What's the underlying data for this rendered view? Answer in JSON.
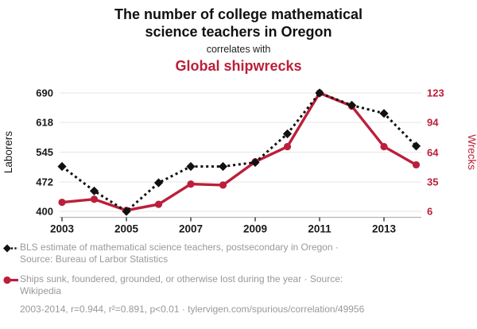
{
  "header": {
    "title_lines": [
      "The number of college mathematical",
      "science teachers in Oregon"
    ],
    "connector": "correlates with",
    "correlate_title": "Global shipwrecks"
  },
  "chart_data": {
    "type": "line",
    "x": [
      2003,
      2004,
      2005,
      2006,
      2007,
      2008,
      2009,
      2010,
      2011,
      2012,
      2013,
      2014
    ],
    "x_ticks": [
      2003,
      2005,
      2007,
      2009,
      2011,
      2013
    ],
    "series": [
      {
        "name": "BLS estimate of mathematical science teachers, postsecondary in Oregon",
        "axis": "left",
        "color": "#111111",
        "line_style": "dashed",
        "marker": "diamond",
        "values": [
          510,
          450,
          400,
          470,
          510,
          510,
          520,
          590,
          690,
          660,
          640,
          560
        ]
      },
      {
        "name": "Ships sunk, foundered, grounded, or otherwise lost during the year",
        "axis": "right",
        "color": "#bb1f3a",
        "line_style": "solid",
        "marker": "circle",
        "values": [
          15,
          18,
          7,
          13,
          33,
          32,
          55,
          70,
          123,
          110,
          70,
          52
        ]
      }
    ],
    "left_axis": {
      "label": "Laborers",
      "ticks": [
        400,
        472,
        545,
        618,
        690
      ],
      "range": [
        400,
        690
      ]
    },
    "right_axis": {
      "label": "Wrecks",
      "ticks": [
        6,
        35,
        64,
        94,
        123
      ],
      "range": [
        6,
        123
      ]
    },
    "grid": true,
    "legend_position": "bottom"
  },
  "legend": {
    "items": [
      {
        "marker": "black-diamond-dashed",
        "lines": [
          "BLS estimate of mathematical science teachers, postsecondary in Oregon ·",
          "Source: Bureau of Larbor Statistics"
        ]
      },
      {
        "marker": "red-circle-solid",
        "lines": [
          "Ships sunk, foundered, grounded, or otherwise lost during the year · Source:",
          "Wikipedia"
        ]
      }
    ]
  },
  "footer": {
    "stats": "2003-2014, r=0.944, r²=0.891, p<0.01 · tylervigen.com/spurious/correlation/49956"
  },
  "colors": {
    "accent_red": "#bb1f3a",
    "series_black": "#111111",
    "grid_line": "#ebebeb",
    "axis_line": "#b5b5b5",
    "tick_text": "#1a1a1a",
    "legend_text": "#999999"
  }
}
